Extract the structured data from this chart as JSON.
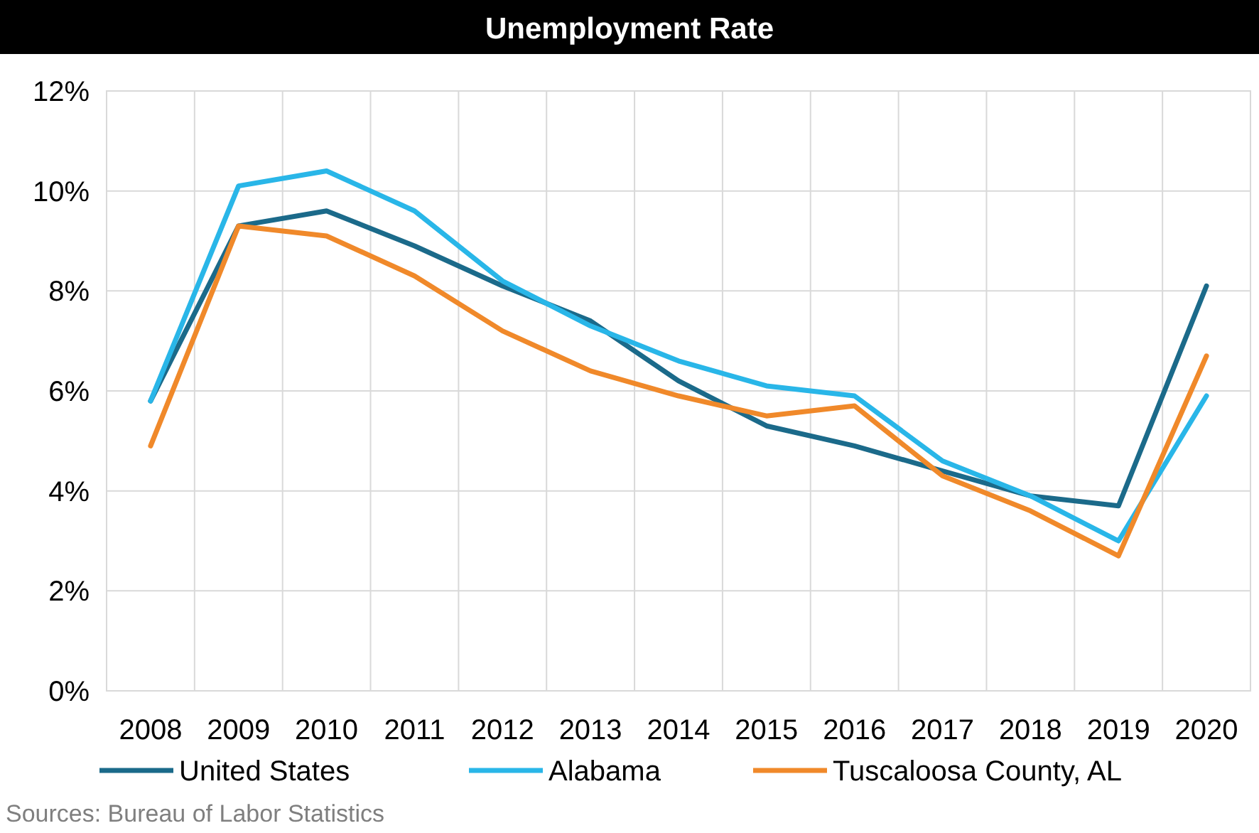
{
  "chart_data": {
    "type": "line",
    "title": "Unemployment Rate",
    "categories": [
      "2008",
      "2009",
      "2010",
      "2011",
      "2012",
      "2013",
      "2014",
      "2015",
      "2016",
      "2017",
      "2018",
      "2019",
      "2020"
    ],
    "series": [
      {
        "name": "United States",
        "color": "#1b6a8a",
        "values": [
          5.8,
          9.3,
          9.6,
          8.9,
          8.1,
          7.4,
          6.2,
          5.3,
          4.9,
          4.4,
          3.9,
          3.7,
          8.1
        ]
      },
      {
        "name": "Alabama",
        "color": "#29b6e8",
        "values": [
          5.8,
          10.1,
          10.4,
          9.6,
          8.2,
          7.3,
          6.6,
          6.1,
          5.9,
          4.6,
          3.9,
          3.0,
          5.9
        ]
      },
      {
        "name": "Tuscaloosa County, AL",
        "color": "#f0892a",
        "values": [
          4.9,
          9.3,
          9.1,
          8.3,
          7.2,
          6.4,
          5.9,
          5.5,
          5.7,
          4.3,
          3.6,
          2.7,
          6.7
        ]
      }
    ],
    "ylim": [
      0,
      12
    ],
    "yticks": [
      {
        "value": 0,
        "label": "0%"
      },
      {
        "value": 2,
        "label": "2%"
      },
      {
        "value": 4,
        "label": "4%"
      },
      {
        "value": 6,
        "label": "6%"
      },
      {
        "value": 8,
        "label": "8%"
      },
      {
        "value": 10,
        "label": "10%"
      },
      {
        "value": 12,
        "label": "12%"
      }
    ],
    "grid": true,
    "legend": "bottom",
    "marker": "none",
    "line_style": "solid",
    "annotations": [
      "Sources: Bureau of Labor Statistics"
    ]
  }
}
